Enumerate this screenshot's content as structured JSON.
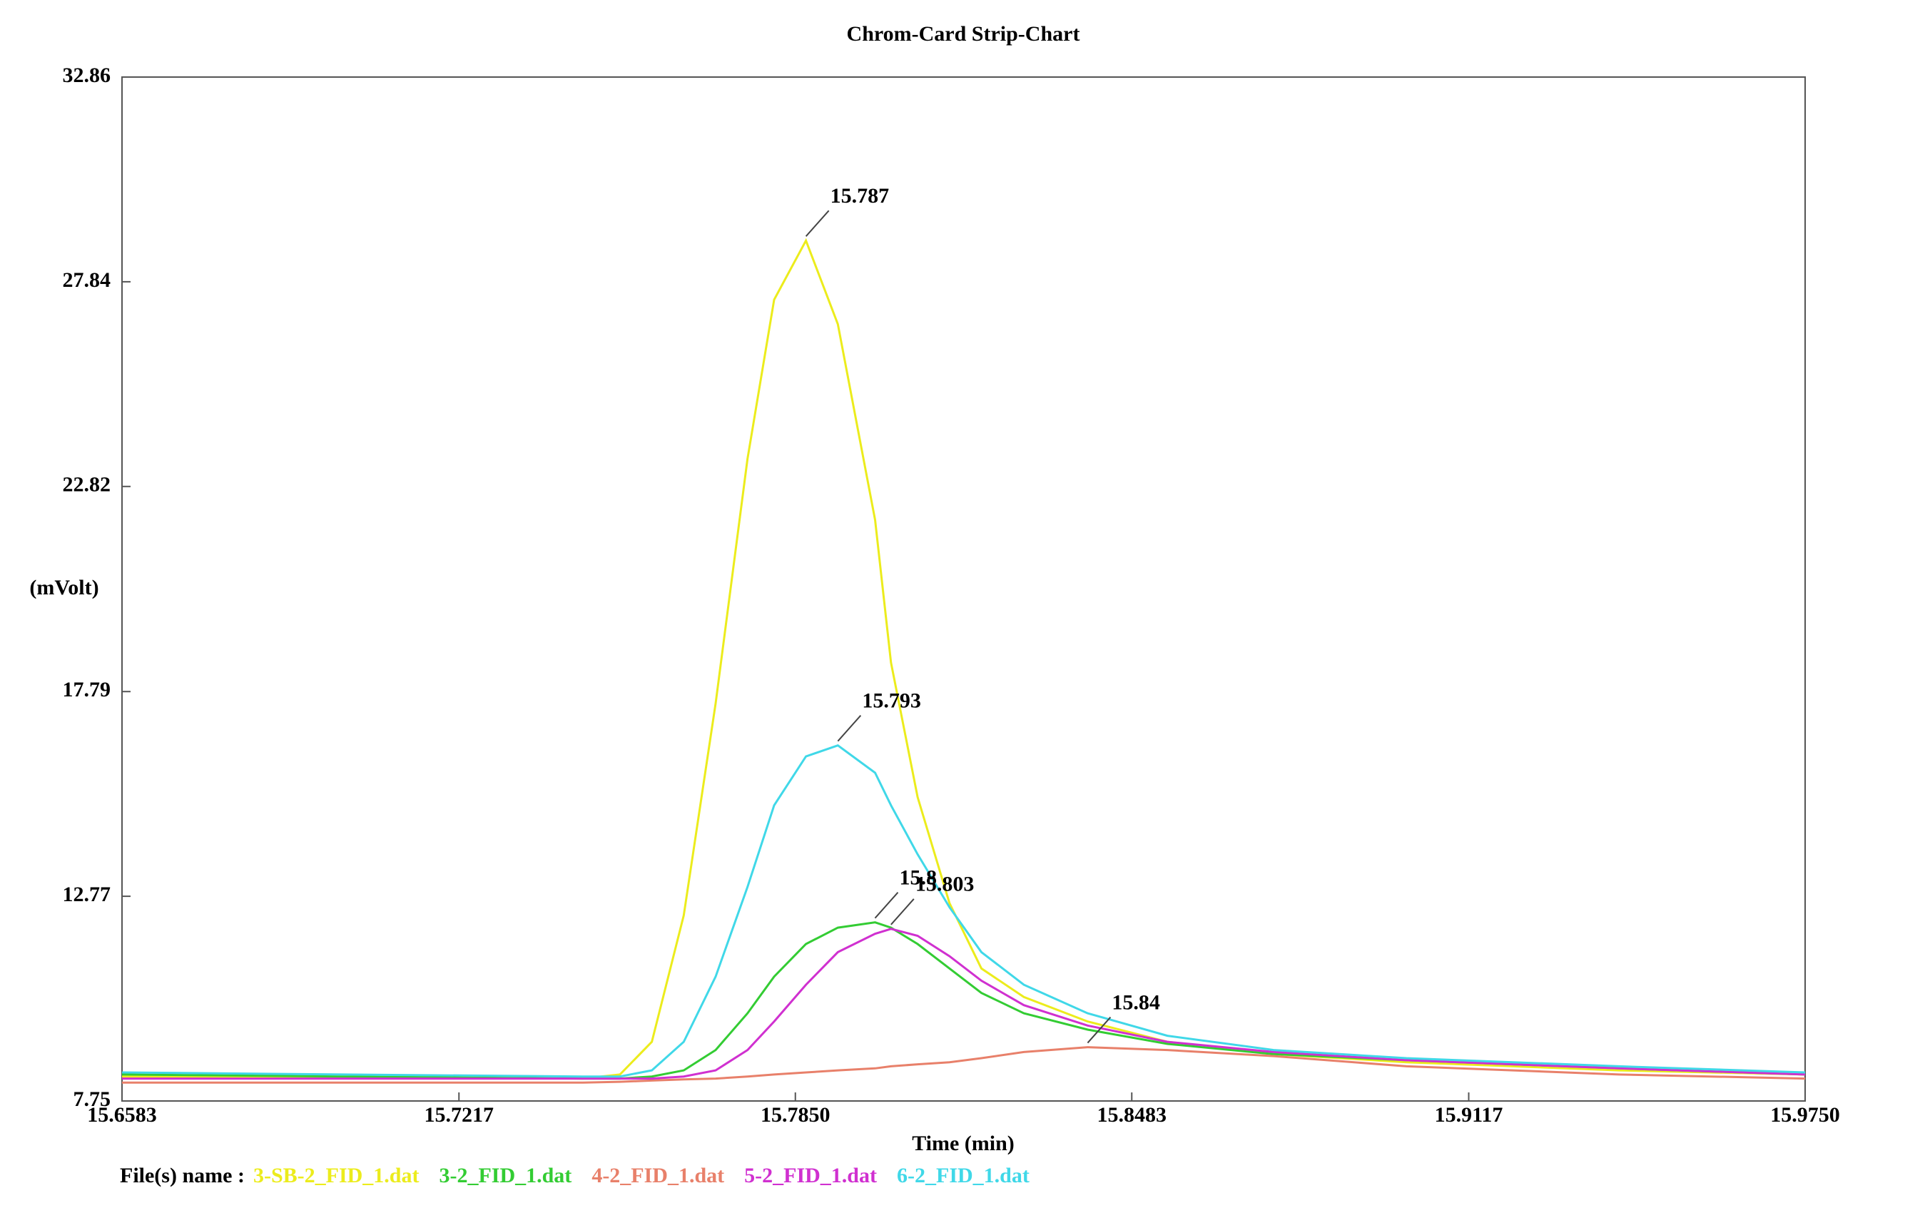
{
  "chart_data": {
    "type": "line",
    "title": "Chrom-Card Strip-Chart",
    "x_label": "Time (min)",
    "y_label": "(mVolt)",
    "legend_title": "File(s) name :",
    "xlim": [
      15.6583,
      15.975
    ],
    "ylim": [
      7.75,
      32.86
    ],
    "xticks": [
      15.6583,
      15.7217,
      {
        "value": 15.785,
        "label": "15.7850"
      },
      15.8483,
      15.9117,
      {
        "value": 15.975,
        "label": "15.9750"
      }
    ],
    "yticks": [
      7.75,
      12.77,
      17.79,
      22.82,
      27.84,
      32.86
    ],
    "grid": false,
    "x": [
      15.6583,
      15.7,
      15.745,
      15.752,
      15.758,
      15.764,
      15.77,
      15.776,
      15.781,
      15.787,
      15.793,
      15.8,
      15.803,
      15.808,
      15.814,
      15.82,
      15.828,
      15.84,
      15.855,
      15.875,
      15.9,
      15.94,
      15.975
    ],
    "series": [
      {
        "name": "3-SB-2_FID_1.dat",
        "color": "#ecec1c",
        "peak": 15.787,
        "values": [
          8.35,
          8.32,
          8.3,
          8.4,
          9.2,
          12.3,
          17.5,
          23.5,
          27.4,
          28.85,
          26.8,
          22.0,
          18.5,
          15.2,
          12.6,
          11.0,
          10.3,
          9.7,
          9.2,
          8.9,
          8.7,
          8.5,
          8.4
        ]
      },
      {
        "name": "3-2_FID_1.dat",
        "color": "#33cc33",
        "peak": 15.8,
        "values": [
          8.4,
          8.35,
          8.3,
          8.3,
          8.35,
          8.5,
          9.0,
          9.9,
          10.8,
          11.6,
          12.0,
          12.13,
          12.0,
          11.6,
          11.0,
          10.4,
          9.9,
          9.5,
          9.15,
          8.9,
          8.75,
          8.55,
          8.4
        ]
      },
      {
        "name": "4-2_FID_1.dat",
        "color": "#e8806a",
        "peak": 15.84,
        "values": [
          8.2,
          8.2,
          8.2,
          8.22,
          8.25,
          8.28,
          8.3,
          8.35,
          8.4,
          8.45,
          8.5,
          8.55,
          8.6,
          8.65,
          8.7,
          8.8,
          8.95,
          9.07,
          9.0,
          8.85,
          8.6,
          8.4,
          8.3
        ]
      },
      {
        "name": "5-2_FID_1.dat",
        "color": "#d030d0",
        "peak": 15.803,
        "values": [
          8.3,
          8.3,
          8.3,
          8.3,
          8.3,
          8.35,
          8.5,
          9.0,
          9.7,
          10.6,
          11.4,
          11.85,
          11.97,
          11.8,
          11.3,
          10.7,
          10.1,
          9.6,
          9.2,
          8.95,
          8.75,
          8.55,
          8.4
        ]
      },
      {
        "name": "6-2_FID_1.dat",
        "color": "#40d8e8",
        "peak": 15.793,
        "values": [
          8.45,
          8.4,
          8.35,
          8.35,
          8.5,
          9.2,
          10.8,
          13.0,
          15.0,
          16.2,
          16.47,
          15.8,
          15.0,
          13.8,
          12.5,
          11.4,
          10.6,
          9.9,
          9.35,
          9.0,
          8.8,
          8.6,
          8.45
        ]
      }
    ]
  }
}
